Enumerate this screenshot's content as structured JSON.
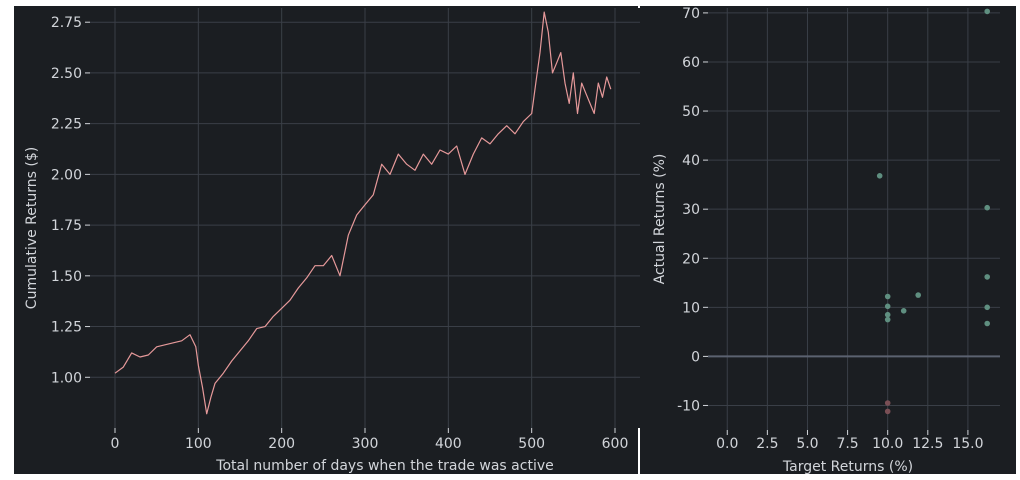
{
  "theme": {
    "panel_bg": "#1b1e22",
    "grid": "#3a3f47",
    "text": "#d2d5da",
    "line": "#e6999a",
    "point_positive": "#5f8f80",
    "point_negative": "#7a4f55",
    "zero_line": "#5b6270"
  },
  "chart_data": [
    {
      "type": "line",
      "xlabel": "Total number of days when the trade was active",
      "ylabel": "Cumulative Returns ($)",
      "xlim": [
        -30,
        630
      ],
      "ylim": [
        0.75,
        2.82
      ],
      "xticks": [
        0,
        100,
        200,
        300,
        400,
        500,
        600
      ],
      "yticks": [
        1.0,
        1.25,
        1.5,
        1.75,
        2.0,
        2.25,
        2.5,
        2.75
      ],
      "grid": true,
      "series": [
        {
          "color": "#e6999a",
          "points": [
            [
              0,
              1.02
            ],
            [
              10,
              1.05
            ],
            [
              20,
              1.12
            ],
            [
              30,
              1.1
            ],
            [
              40,
              1.11
            ],
            [
              50,
              1.15
            ],
            [
              60,
              1.16
            ],
            [
              70,
              1.17
            ],
            [
              80,
              1.18
            ],
            [
              90,
              1.21
            ],
            [
              97,
              1.15
            ],
            [
              100,
              1.06
            ],
            [
              105,
              0.95
            ],
            [
              110,
              0.82
            ],
            [
              115,
              0.9
            ],
            [
              120,
              0.97
            ],
            [
              130,
              1.02
            ],
            [
              140,
              1.08
            ],
            [
              150,
              1.13
            ],
            [
              160,
              1.18
            ],
            [
              170,
              1.24
            ],
            [
              180,
              1.25
            ],
            [
              190,
              1.3
            ],
            [
              200,
              1.34
            ],
            [
              210,
              1.38
            ],
            [
              220,
              1.44
            ],
            [
              230,
              1.49
            ],
            [
              240,
              1.55
            ],
            [
              250,
              1.55
            ],
            [
              260,
              1.6
            ],
            [
              270,
              1.5
            ],
            [
              280,
              1.7
            ],
            [
              290,
              1.8
            ],
            [
              300,
              1.85
            ],
            [
              310,
              1.9
            ],
            [
              320,
              2.05
            ],
            [
              330,
              2.0
            ],
            [
              340,
              2.1
            ],
            [
              350,
              2.05
            ],
            [
              360,
              2.02
            ],
            [
              370,
              2.1
            ],
            [
              380,
              2.05
            ],
            [
              390,
              2.12
            ],
            [
              400,
              2.1
            ],
            [
              410,
              2.14
            ],
            [
              420,
              2.0
            ],
            [
              430,
              2.1
            ],
            [
              440,
              2.18
            ],
            [
              450,
              2.15
            ],
            [
              460,
              2.2
            ],
            [
              470,
              2.24
            ],
            [
              480,
              2.2
            ],
            [
              490,
              2.26
            ],
            [
              500,
              2.3
            ],
            [
              505,
              2.45
            ],
            [
              510,
              2.6
            ],
            [
              515,
              2.8
            ],
            [
              520,
              2.7
            ],
            [
              525,
              2.5
            ],
            [
              530,
              2.55
            ],
            [
              535,
              2.6
            ],
            [
              540,
              2.45
            ],
            [
              545,
              2.35
            ],
            [
              550,
              2.5
            ],
            [
              555,
              2.3
            ],
            [
              560,
              2.45
            ],
            [
              565,
              2.4
            ],
            [
              570,
              2.35
            ],
            [
              575,
              2.3
            ],
            [
              580,
              2.45
            ],
            [
              585,
              2.38
            ],
            [
              590,
              2.48
            ],
            [
              595,
              2.42
            ]
          ]
        }
      ]
    },
    {
      "type": "scatter",
      "xlabel": "Target Returns (%)",
      "ylabel": "Actual Returns (%)",
      "xlim": [
        -1.2,
        17.0
      ],
      "ylim": [
        -15,
        71
      ],
      "xticks": [
        0.0,
        2.5,
        5.0,
        7.5,
        10.0,
        12.5,
        15.0
      ],
      "xtick_labels": [
        "0.0",
        "2.5",
        "5.0",
        "7.5",
        "10.0",
        "12.5",
        "15.0"
      ],
      "yticks": [
        -10,
        0,
        10,
        20,
        30,
        40,
        50,
        60,
        70
      ],
      "grid": true,
      "reference_line": {
        "y": 0
      },
      "points": [
        {
          "x": 9.5,
          "y": 36.8
        },
        {
          "x": 10.0,
          "y": 12.2
        },
        {
          "x": 10.0,
          "y": 10.2
        },
        {
          "x": 10.0,
          "y": 8.5
        },
        {
          "x": 10.0,
          "y": 7.5
        },
        {
          "x": 11.0,
          "y": 9.3
        },
        {
          "x": 11.9,
          "y": 12.5
        },
        {
          "x": 16.2,
          "y": 70.3
        },
        {
          "x": 16.2,
          "y": 30.3
        },
        {
          "x": 16.2,
          "y": 16.2
        },
        {
          "x": 16.2,
          "y": 10.0
        },
        {
          "x": 16.2,
          "y": 6.7
        },
        {
          "x": 10.0,
          "y": -9.5
        },
        {
          "x": 10.0,
          "y": -11.2
        }
      ]
    }
  ]
}
